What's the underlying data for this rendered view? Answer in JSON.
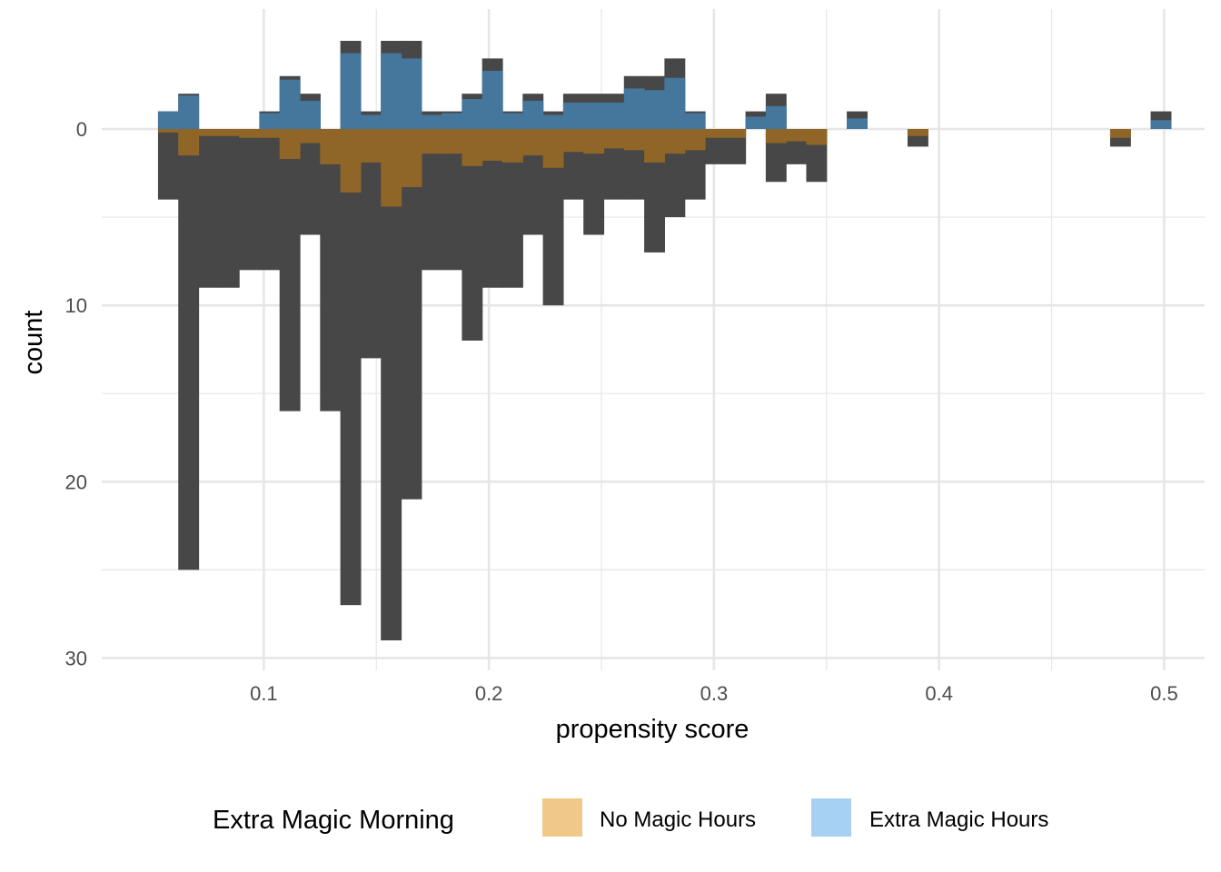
{
  "chart_data": {
    "type": "bar",
    "subtype": "mirrored-histogram",
    "title": "",
    "xlabel": "propensity score",
    "ylabel": "count",
    "xlim": [
      0.028,
      0.518
    ],
    "ylim": [
      -6.8,
      30.7
    ],
    "x_ticks": [
      0.1,
      0.2,
      0.3,
      0.4,
      0.5
    ],
    "x_tick_labels": [
      "0.1",
      "0.2",
      "0.3",
      "0.4",
      "0.5"
    ],
    "y_ticks": [
      0,
      10,
      20,
      30
    ],
    "y_tick_labels": [
      "0",
      "10",
      "20",
      "30"
    ],
    "y_axis_reversed": true,
    "grid": true,
    "bin_width": 0.009,
    "legend": {
      "title": "Extra Magic Morning",
      "position": "bottom",
      "entries": [
        {
          "label": "No Magic Hours",
          "color": "#f0c888"
        },
        {
          "label": "Extra Magic Hours",
          "color": "#a6d1f2"
        }
      ]
    },
    "colors": {
      "unweighted": "#474747",
      "weighted_no_magic": "#8f6628",
      "weighted_extra_magic": "#45769c",
      "grid": "#e6e6e6"
    },
    "series": [
      {
        "name": "No Magic Hours",
        "x": [
          0.0575,
          0.0665,
          0.0755,
          0.0845,
          0.0935,
          0.1025,
          0.1115,
          0.1205,
          0.1295,
          0.1385,
          0.1475,
          0.1565,
          0.1655,
          0.1745,
          0.1835,
          0.1925,
          0.2015,
          0.2105,
          0.2195,
          0.2285,
          0.2375,
          0.2465,
          0.2555,
          0.2645,
          0.2735,
          0.2825,
          0.2915,
          0.3005,
          0.3095,
          0.3275,
          0.3365,
          0.3455,
          0.3905,
          0.4805
        ],
        "unweighted_count": [
          4,
          25,
          9,
          9,
          8,
          8,
          16,
          6,
          16,
          27,
          13,
          29,
          21,
          8,
          8,
          12,
          9,
          9,
          6,
          10,
          4,
          6,
          4,
          4,
          7,
          5,
          4,
          2,
          2,
          3,
          2,
          3,
          1,
          1
        ],
        "weighted_count": [
          0.2,
          1.5,
          0.4,
          0.4,
          0.5,
          0.5,
          1.7,
          0.8,
          2.0,
          3.6,
          1.9,
          4.4,
          3.3,
          1.4,
          1.4,
          2.1,
          1.8,
          1.9,
          1.5,
          2.2,
          1.3,
          1.4,
          1.1,
          1.2,
          1.9,
          1.4,
          1.2,
          0.5,
          0.5,
          0.8,
          0.7,
          0.9,
          0.4,
          0.5
        ]
      },
      {
        "name": "Extra Magic Hours",
        "x": [
          0.0575,
          0.0665,
          0.1025,
          0.1115,
          0.1205,
          0.1385,
          0.1475,
          0.1565,
          0.1655,
          0.1745,
          0.1835,
          0.1925,
          0.2015,
          0.2105,
          0.2195,
          0.2285,
          0.2375,
          0.2465,
          0.2555,
          0.2645,
          0.2735,
          0.2825,
          0.2915,
          0.3185,
          0.3275,
          0.3635,
          0.4985
        ],
        "unweighted_count": [
          1,
          2,
          1,
          3,
          2,
          5,
          1,
          5,
          5,
          1,
          1,
          2,
          4,
          1,
          2,
          1,
          2,
          2,
          2,
          3,
          3,
          4,
          1,
          1,
          2,
          1,
          1
        ],
        "weighted_count": [
          1.0,
          1.9,
          0.9,
          2.8,
          1.6,
          4.3,
          0.8,
          4.3,
          4.0,
          0.8,
          0.9,
          1.7,
          3.3,
          0.9,
          1.6,
          0.8,
          1.5,
          1.5,
          1.5,
          2.3,
          2.2,
          2.9,
          0.9,
          0.7,
          1.3,
          0.6,
          0.5
        ]
      }
    ]
  }
}
